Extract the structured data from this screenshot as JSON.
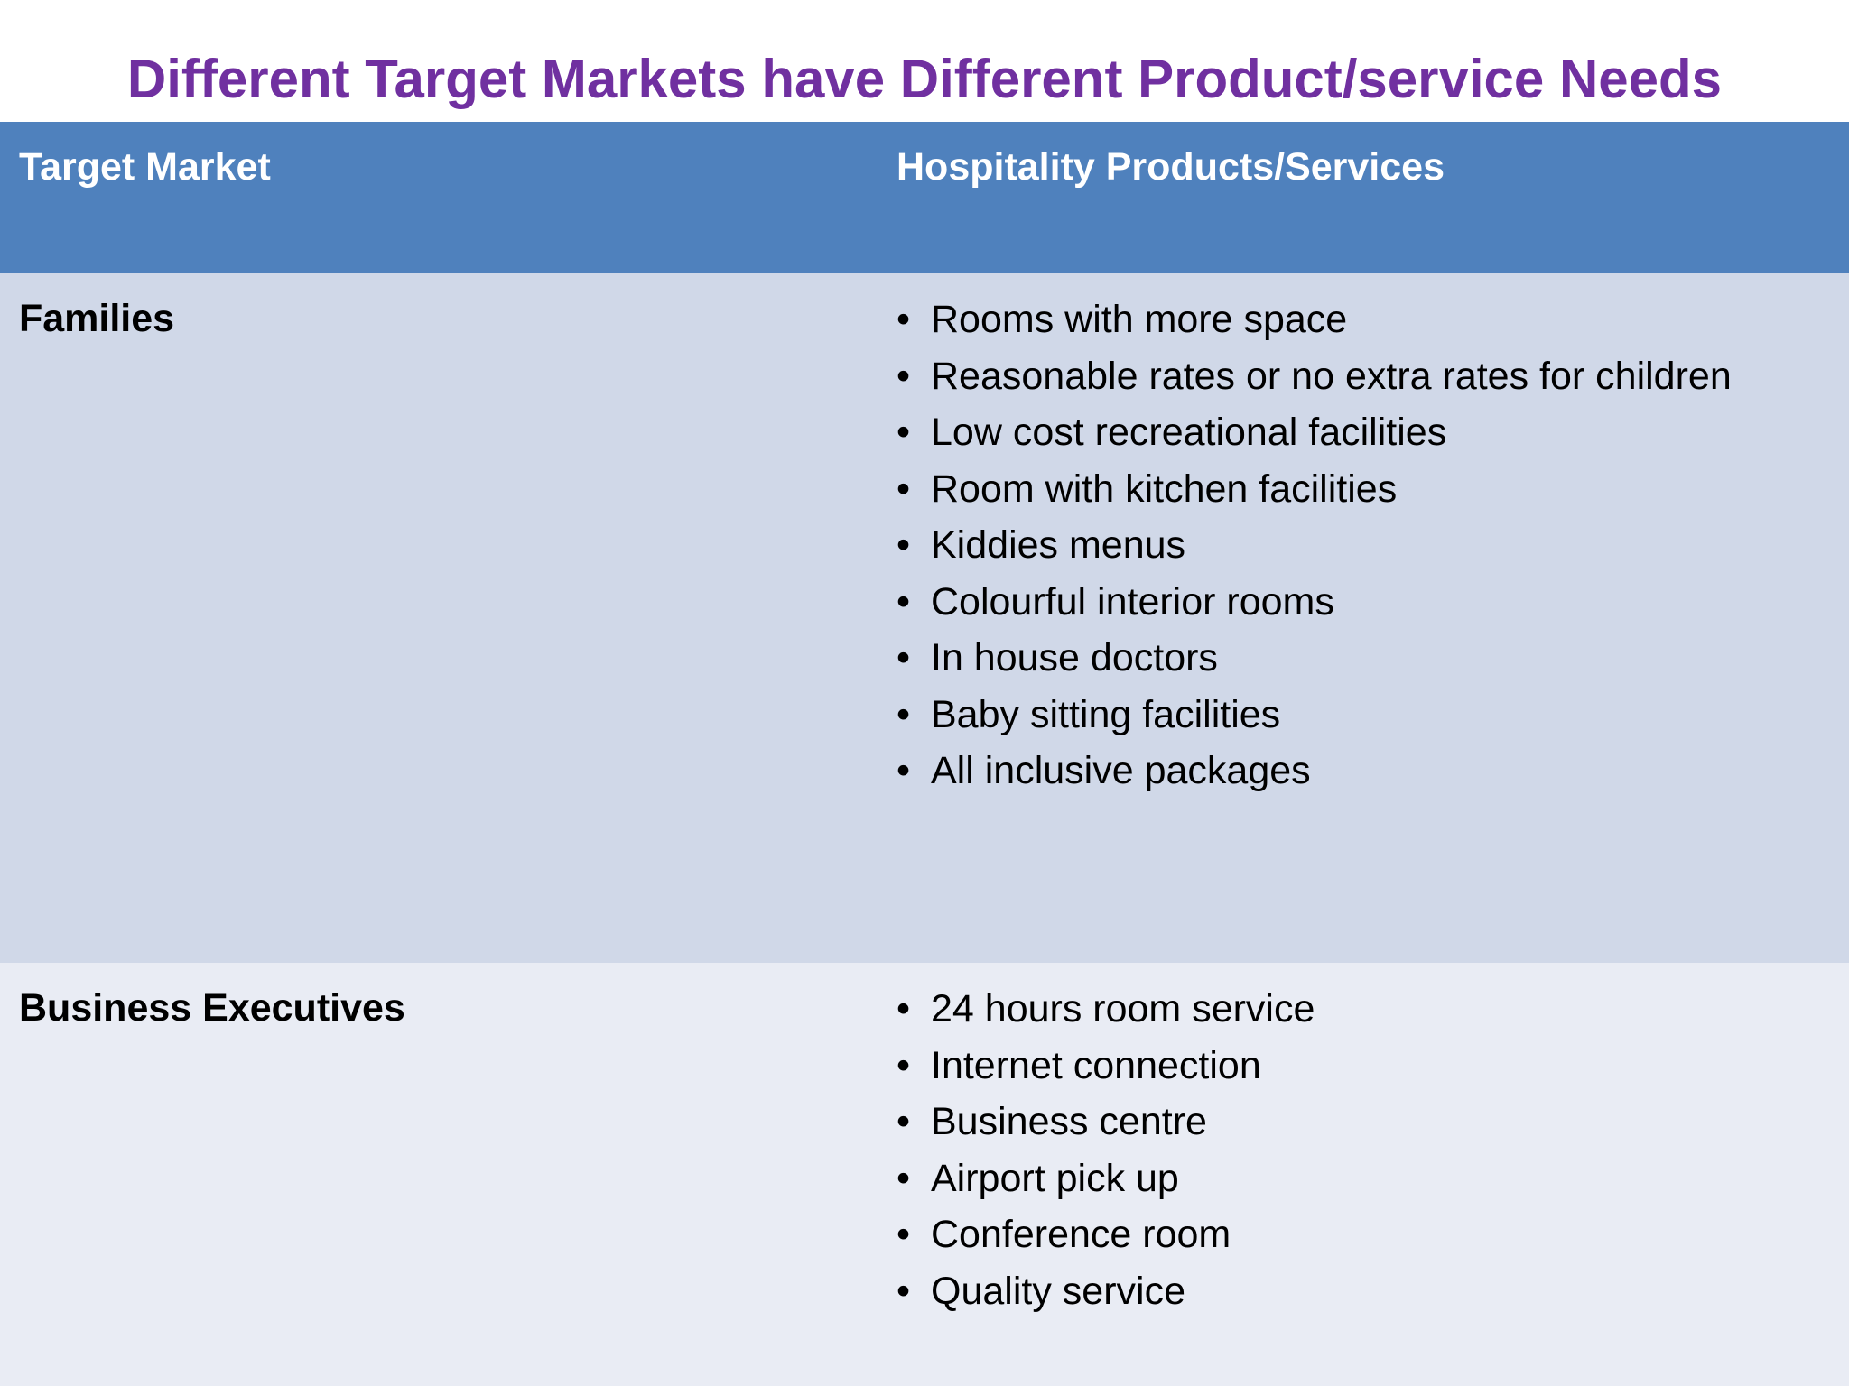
{
  "title": "Different Target Markets have Different Product/service Needs",
  "colors": {
    "title": "#7030a0",
    "header_bg": "#4f81bd",
    "row1_bg": "#d0d8e8",
    "row2_bg": "#e9ecf4"
  },
  "table": {
    "headers": [
      "Target Market",
      "Hospitality Products/Services"
    ],
    "rows": [
      {
        "market": "Families",
        "items": [
          "Rooms with more space",
          "Reasonable rates or no extra rates for children",
          "Low cost recreational facilities",
          "Room with kitchen facilities",
          "Kiddies menus",
          "Colourful interior rooms",
          "In house doctors",
          "Baby sitting facilities",
          "All inclusive packages"
        ]
      },
      {
        "market": "Business Executives",
        "items": [
          "24 hours room service",
          "Internet connection",
          "Business centre",
          "Airport pick up",
          "Conference room",
          "Quality service"
        ]
      }
    ]
  }
}
